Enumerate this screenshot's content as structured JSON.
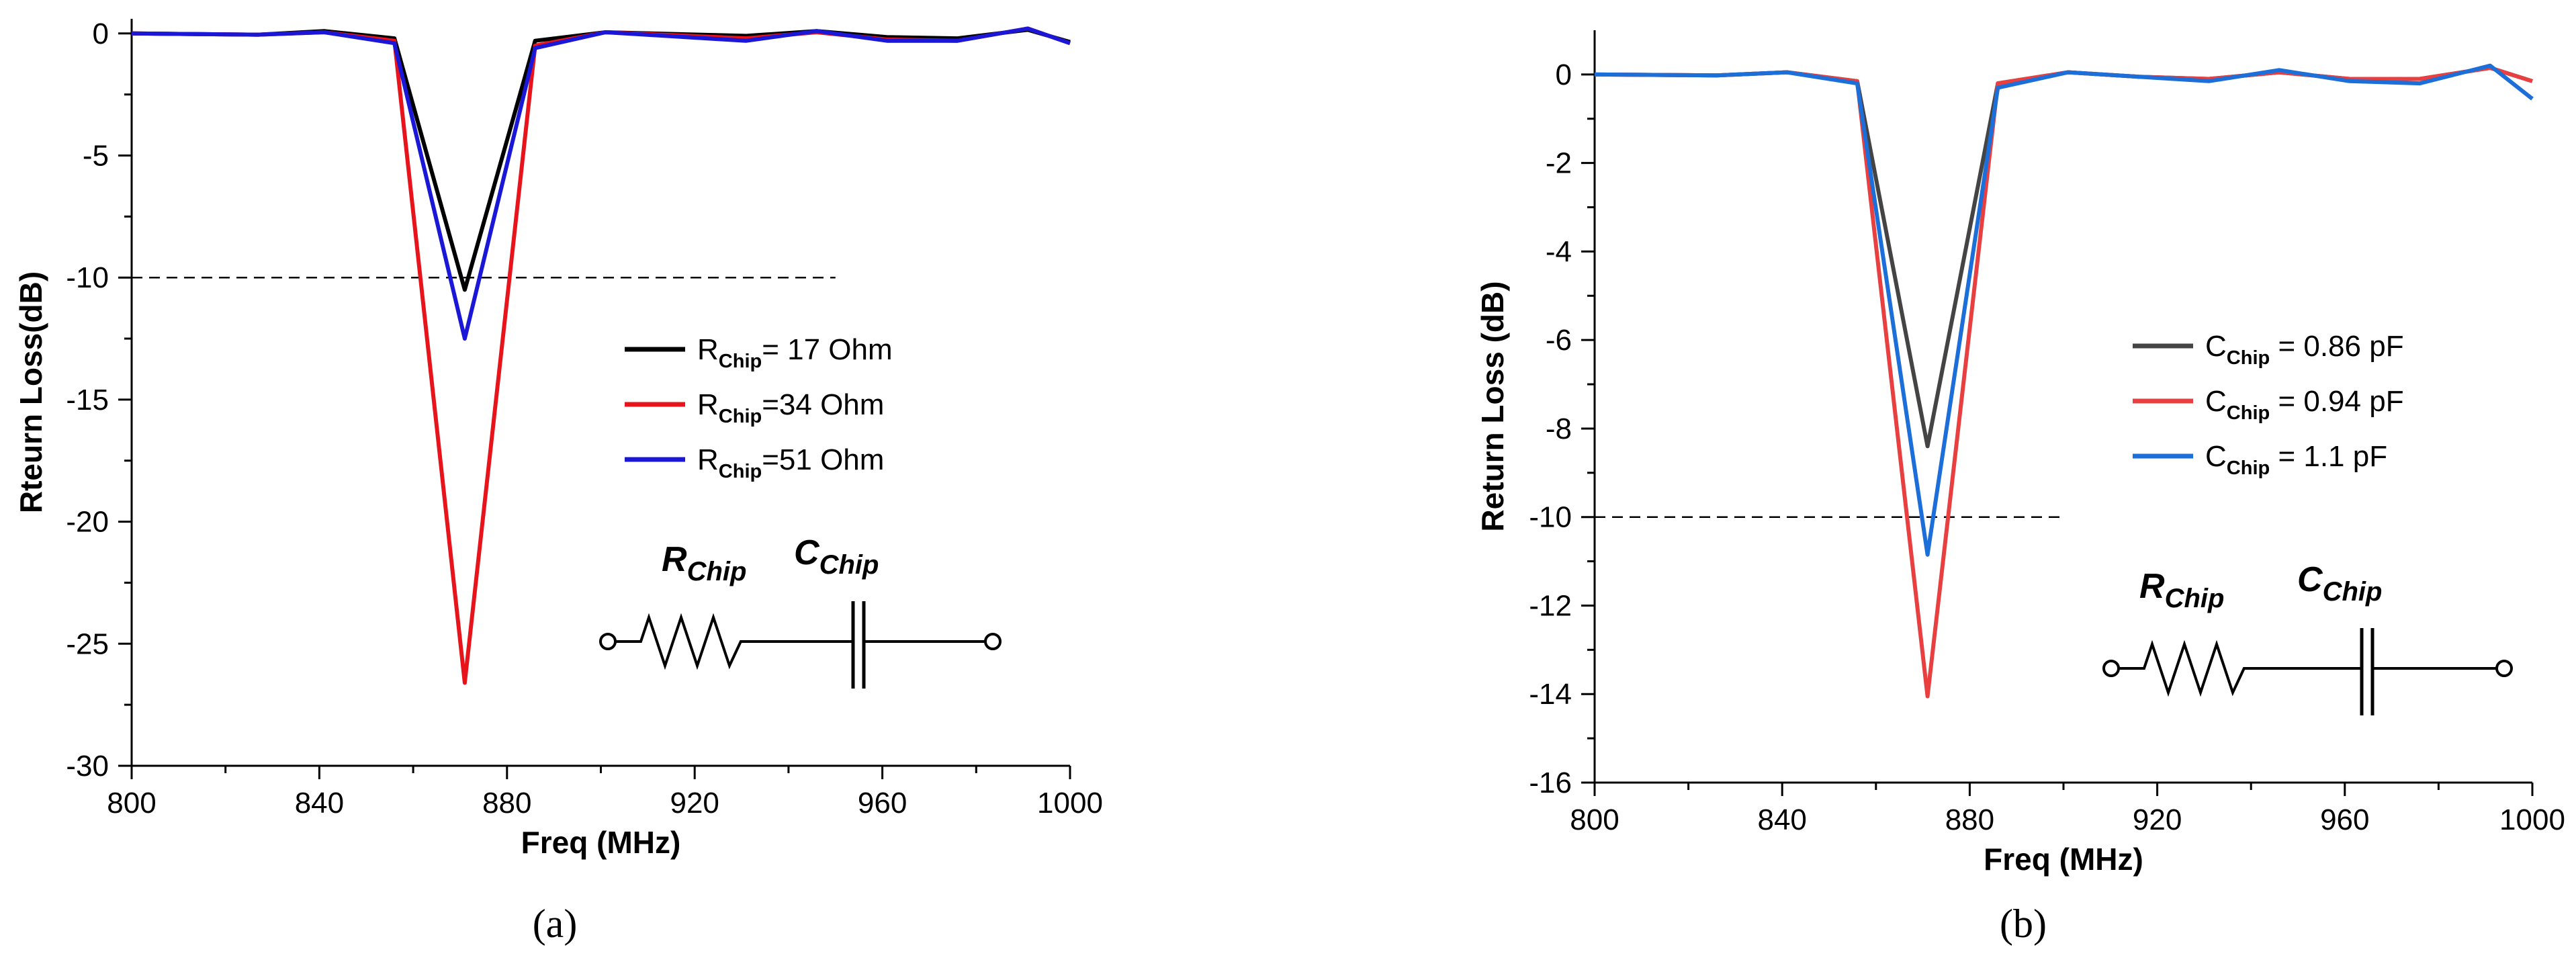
{
  "chart_data": [
    {
      "type": "line",
      "panel_label": "(a)",
      "xlabel": "Freq (MHz)",
      "ylabel": "Rteurn Loss(dB)",
      "xlim": [
        800,
        1000
      ],
      "ylim": [
        -30,
        0.6
      ],
      "xticks": [
        800,
        840,
        880,
        920,
        960,
        1000
      ],
      "yticks": [
        0,
        -5,
        -10,
        -15,
        -20,
        -25,
        -30
      ],
      "ytick_labels": [
        "0",
        "-5",
        "-10",
        "-15",
        "-20",
        "-25",
        "-30"
      ],
      "grid": false,
      "legend_position": "right",
      "threshold": {
        "y": -10,
        "x_range": [
          800,
          950
        ]
      },
      "x": [
        800,
        827,
        841,
        856,
        871,
        886,
        901,
        931,
        946,
        961,
        976,
        991,
        1000
      ],
      "series": [
        {
          "name_main": "R",
          "name_sub": "Chip",
          "name_rest": "= 17 Ohm",
          "color": "#000000",
          "values": [
            0,
            -0.05,
            0.1,
            -0.2,
            -10.5,
            -0.3,
            0.05,
            -0.1,
            0.1,
            -0.15,
            -0.2,
            0.15,
            -0.35
          ]
        },
        {
          "name_main": "R",
          "name_sub": "Chip",
          "name_rest": "=34 Ohm",
          "color": "#e8141c",
          "values": [
            0,
            -0.05,
            0.05,
            -0.3,
            -26.6,
            -0.5,
            0.05,
            -0.2,
            0.05,
            -0.25,
            -0.3,
            0.2,
            -0.4
          ]
        },
        {
          "name_main": "R",
          "name_sub": "Chip",
          "name_rest": "=51 Ohm",
          "color": "#1a17d6",
          "values": [
            0,
            -0.05,
            0.05,
            -0.4,
            -12.5,
            -0.6,
            0.05,
            -0.3,
            0.1,
            -0.3,
            -0.3,
            0.2,
            -0.4
          ]
        }
      ],
      "circuit": {
        "r_main": "R",
        "r_sub": "Chip",
        "c_main": "C",
        "c_sub": "Chip"
      }
    },
    {
      "type": "line",
      "panel_label": "(b)",
      "xlabel": "Freq (MHz)",
      "ylabel": "Return Loss (dB)",
      "xlim": [
        800,
        1000
      ],
      "ylim": [
        -16,
        1
      ],
      "xticks": [
        800,
        840,
        880,
        920,
        960,
        1000
      ],
      "yticks": [
        0,
        -2,
        -4,
        -6,
        -8,
        -10,
        -12,
        -14,
        -16
      ],
      "ytick_labels": [
        "0",
        "-2",
        "-4",
        "-6",
        "-8",
        "-10",
        "-12",
        "-14",
        "-16"
      ],
      "grid": false,
      "legend_position": "right",
      "threshold": {
        "y": -10,
        "x_range": [
          800,
          900
        ]
      },
      "x": [
        800,
        826,
        841,
        856,
        871,
        886,
        901,
        916,
        931,
        946,
        961,
        976,
        991,
        1000
      ],
      "series": [
        {
          "name_main": "C",
          "name_sub": "Chip",
          "name_rest": " = 0.86 pF",
          "color": "#444444",
          "values": [
            0,
            -0.02,
            0.05,
            -0.15,
            -8.4,
            -0.2,
            0.05,
            -0.05,
            -0.1,
            0.05,
            -0.1,
            -0.1,
            0.15,
            -0.15
          ]
        },
        {
          "name_main": "C",
          "name_sub": "Chip",
          "name_rest": " = 0.94 pF",
          "color": "#e84040",
          "values": [
            0,
            -0.02,
            0.05,
            -0.15,
            -14.05,
            -0.2,
            0.05,
            -0.05,
            -0.1,
            0.05,
            -0.1,
            -0.1,
            0.15,
            -0.15
          ]
        },
        {
          "name_main": "C",
          "name_sub": "Chip",
          "name_rest": " = 1.1 pF",
          "color": "#1c6ed8",
          "values": [
            0,
            -0.02,
            0.05,
            -0.2,
            -10.85,
            -0.3,
            0.05,
            -0.05,
            -0.15,
            0.1,
            -0.15,
            -0.2,
            0.2,
            -0.55
          ]
        }
      ],
      "circuit": {
        "r_main": "R",
        "r_sub": "Chip",
        "c_main": "C",
        "c_sub": "Chip"
      }
    }
  ]
}
